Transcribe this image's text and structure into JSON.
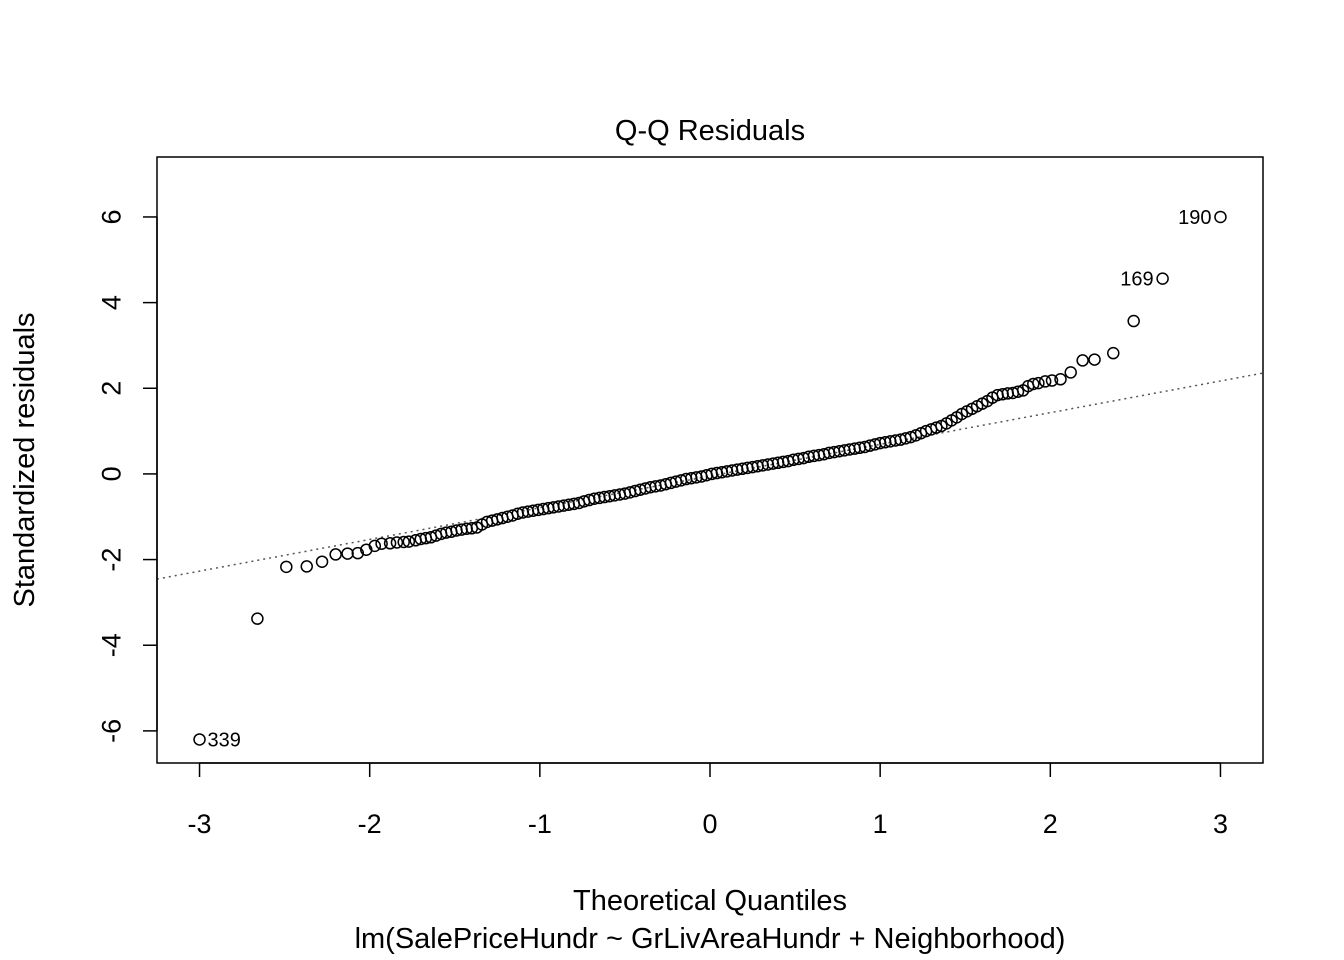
{
  "chart_data": {
    "type": "scatter",
    "title": "Q-Q Residuals",
    "xlabel": "Theoretical Quantiles",
    "subtitle": "lm(SalePriceHundr ~ GrLivAreaHundr + Neighborhood)",
    "ylabel": "Standardized residuals",
    "xlim": [
      -3.25,
      3.25
    ],
    "ylim": [
      -6.75,
      7.4
    ],
    "x_ticks": [
      -3,
      -2,
      -1,
      0,
      1,
      2,
      3
    ],
    "x_tick_labels": [
      "-3",
      "-2",
      "-1",
      "0",
      "1",
      "2",
      "3"
    ],
    "y_ticks": [
      -6,
      -4,
      -2,
      0,
      2,
      4,
      6
    ],
    "y_tick_labels": [
      "-6",
      "-4",
      "-2",
      "0",
      "2",
      "4",
      "6"
    ],
    "grid": false,
    "reference_line": {
      "slope": 0.74,
      "intercept": -0.05,
      "style": "dotted",
      "color": "#555555"
    },
    "labeled_points": [
      {
        "label": "339",
        "x": -3.0,
        "y": -6.2,
        "side": "right"
      },
      {
        "label": "169",
        "x": 2.66,
        "y": 4.56,
        "side": "left"
      },
      {
        "label": "190",
        "x": 3.0,
        "y": 6.0,
        "side": "left"
      }
    ],
    "series": [
      {
        "marker": "open-circle",
        "points": [
          [
            -2.66,
            -3.38
          ],
          [
            -2.49,
            -2.17
          ],
          [
            -2.37,
            -2.16
          ],
          [
            -2.28,
            -2.05
          ],
          [
            -2.2,
            -1.88
          ],
          [
            -2.13,
            -1.86
          ],
          [
            -2.07,
            -1.85
          ],
          [
            -2.02,
            -1.77
          ],
          [
            -1.97,
            -1.68
          ],
          [
            -1.93,
            -1.63
          ],
          [
            -1.88,
            -1.62
          ],
          [
            -1.84,
            -1.6
          ],
          [
            -1.8,
            -1.59
          ],
          [
            -1.77,
            -1.58
          ],
          [
            -1.73,
            -1.55
          ],
          [
            -1.7,
            -1.52
          ],
          [
            -1.67,
            -1.5
          ],
          [
            -1.64,
            -1.48
          ],
          [
            -1.61,
            -1.44
          ],
          [
            -1.58,
            -1.4
          ],
          [
            -1.55,
            -1.37
          ],
          [
            -1.52,
            -1.35
          ],
          [
            -1.49,
            -1.32
          ],
          [
            -1.46,
            -1.3
          ],
          [
            -1.43,
            -1.28
          ],
          [
            -1.4,
            -1.27
          ],
          [
            -1.37,
            -1.25
          ],
          [
            -1.34,
            -1.18
          ],
          [
            -1.31,
            -1.12
          ],
          [
            -1.28,
            -1.09
          ],
          [
            -1.25,
            -1.06
          ],
          [
            -1.22,
            -1.03
          ],
          [
            -1.19,
            -1.0
          ],
          [
            -1.16,
            -0.97
          ],
          [
            -1.13,
            -0.93
          ],
          [
            -1.1,
            -0.9
          ],
          [
            -1.07,
            -0.88
          ],
          [
            -1.04,
            -0.86
          ],
          [
            -1.01,
            -0.84
          ],
          [
            -0.98,
            -0.82
          ],
          [
            -0.95,
            -0.8
          ],
          [
            -0.92,
            -0.78
          ],
          [
            -0.89,
            -0.76
          ],
          [
            -0.86,
            -0.74
          ],
          [
            -0.83,
            -0.72
          ],
          [
            -0.8,
            -0.7
          ],
          [
            -0.77,
            -0.68
          ],
          [
            -0.74,
            -0.64
          ],
          [
            -0.71,
            -0.61
          ],
          [
            -0.68,
            -0.58
          ],
          [
            -0.65,
            -0.56
          ],
          [
            -0.62,
            -0.54
          ],
          [
            -0.59,
            -0.52
          ],
          [
            -0.56,
            -0.5
          ],
          [
            -0.53,
            -0.48
          ],
          [
            -0.5,
            -0.46
          ],
          [
            -0.47,
            -0.43
          ],
          [
            -0.44,
            -0.4
          ],
          [
            -0.41,
            -0.37
          ],
          [
            -0.38,
            -0.34
          ],
          [
            -0.35,
            -0.31
          ],
          [
            -0.32,
            -0.29
          ],
          [
            -0.29,
            -0.27
          ],
          [
            -0.26,
            -0.24
          ],
          [
            -0.23,
            -0.21
          ],
          [
            -0.2,
            -0.18
          ],
          [
            -0.17,
            -0.15
          ],
          [
            -0.14,
            -0.12
          ],
          [
            -0.11,
            -0.1
          ],
          [
            -0.08,
            -0.08
          ],
          [
            -0.05,
            -0.06
          ],
          [
            -0.02,
            -0.03
          ],
          [
            0.01,
            0.0
          ],
          [
            0.04,
            0.02
          ],
          [
            0.07,
            0.04
          ],
          [
            0.1,
            0.06
          ],
          [
            0.13,
            0.08
          ],
          [
            0.16,
            0.1
          ],
          [
            0.19,
            0.12
          ],
          [
            0.22,
            0.14
          ],
          [
            0.25,
            0.16
          ],
          [
            0.28,
            0.18
          ],
          [
            0.31,
            0.2
          ],
          [
            0.34,
            0.22
          ],
          [
            0.37,
            0.24
          ],
          [
            0.4,
            0.26
          ],
          [
            0.43,
            0.28
          ],
          [
            0.46,
            0.3
          ],
          [
            0.49,
            0.33
          ],
          [
            0.52,
            0.35
          ],
          [
            0.55,
            0.37
          ],
          [
            0.58,
            0.4
          ],
          [
            0.61,
            0.42
          ],
          [
            0.64,
            0.44
          ],
          [
            0.67,
            0.46
          ],
          [
            0.7,
            0.49
          ],
          [
            0.73,
            0.51
          ],
          [
            0.76,
            0.53
          ],
          [
            0.79,
            0.55
          ],
          [
            0.82,
            0.57
          ],
          [
            0.85,
            0.59
          ],
          [
            0.88,
            0.61
          ],
          [
            0.91,
            0.63
          ],
          [
            0.94,
            0.66
          ],
          [
            0.97,
            0.69
          ],
          [
            1.0,
            0.72
          ],
          [
            1.03,
            0.74
          ],
          [
            1.06,
            0.76
          ],
          [
            1.09,
            0.78
          ],
          [
            1.12,
            0.8
          ],
          [
            1.15,
            0.83
          ],
          [
            1.18,
            0.86
          ],
          [
            1.21,
            0.9
          ],
          [
            1.24,
            0.95
          ],
          [
            1.27,
            1.0
          ],
          [
            1.3,
            1.04
          ],
          [
            1.33,
            1.08
          ],
          [
            1.36,
            1.12
          ],
          [
            1.39,
            1.18
          ],
          [
            1.42,
            1.25
          ],
          [
            1.45,
            1.32
          ],
          [
            1.48,
            1.4
          ],
          [
            1.51,
            1.46
          ],
          [
            1.54,
            1.52
          ],
          [
            1.57,
            1.58
          ],
          [
            1.6,
            1.64
          ],
          [
            1.63,
            1.7
          ],
          [
            1.66,
            1.78
          ],
          [
            1.69,
            1.84
          ],
          [
            1.72,
            1.86
          ],
          [
            1.75,
            1.88
          ],
          [
            1.78,
            1.89
          ],
          [
            1.81,
            1.92
          ],
          [
            1.84,
            1.95
          ],
          [
            1.87,
            2.05
          ],
          [
            1.9,
            2.1
          ],
          [
            1.93,
            2.12
          ],
          [
            1.97,
            2.16
          ],
          [
            2.01,
            2.18
          ],
          [
            2.06,
            2.21
          ],
          [
            2.12,
            2.37
          ],
          [
            2.19,
            2.65
          ],
          [
            2.26,
            2.67
          ],
          [
            2.37,
            2.82
          ],
          [
            2.49,
            3.57
          ],
          [
            2.66,
            4.56
          ],
          [
            3.0,
            6.0
          ],
          [
            -3.0,
            -6.2
          ]
        ]
      }
    ]
  }
}
